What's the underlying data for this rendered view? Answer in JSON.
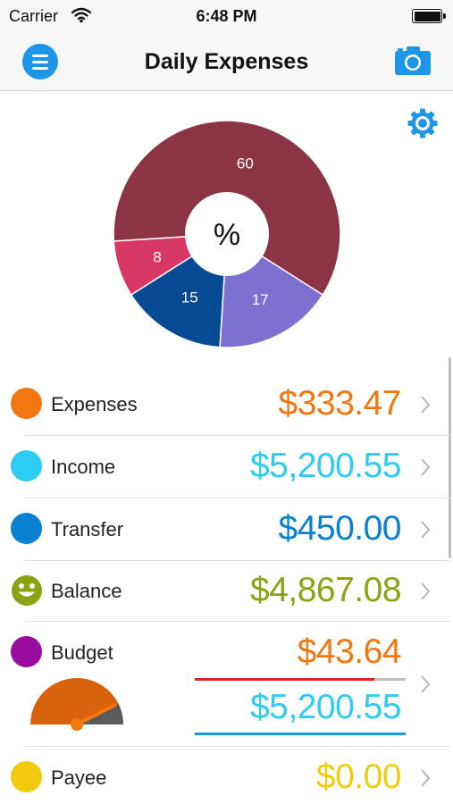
{
  "status_bar": {
    "carrier": "Carrier",
    "time": "6:48 PM"
  },
  "nav": {
    "title": "Daily Expenses",
    "menu_icon": "menu-icon",
    "camera_icon": "camera-icon"
  },
  "settings_icon": "gear-icon",
  "chart_data": {
    "type": "pie",
    "center_label": "%",
    "slices": [
      {
        "value": 60,
        "label": "60",
        "color": "#8a3444"
      },
      {
        "value": 17,
        "label": "17",
        "color": "#7e70d0"
      },
      {
        "value": 15,
        "label": "15",
        "color": "#064a94"
      },
      {
        "value": 8,
        "label": "8",
        "color": "#d83866"
      }
    ]
  },
  "rows": [
    {
      "label": "Expenses",
      "value": "$333.47",
      "color": "#f2770f"
    },
    {
      "label": "Income",
      "value": "$5,200.55",
      "color": "#2ecbf2"
    },
    {
      "label": "Transfer",
      "value": "$450.00",
      "color": "#0a80d0"
    },
    {
      "label": "Balance",
      "value": "$4,867.08",
      "color": "#8aa315",
      "icon": "smiley-icon"
    },
    {
      "label": "Budget",
      "value": "$43.64",
      "value2": "$5,200.55",
      "color": "#9a0c9e",
      "value_color": "#f2770f",
      "value2_color": "#2ecbf2",
      "gauge_fraction": 0.85
    },
    {
      "label": "Payee",
      "value": "$0.00",
      "color": "#f2cc0c"
    }
  ]
}
